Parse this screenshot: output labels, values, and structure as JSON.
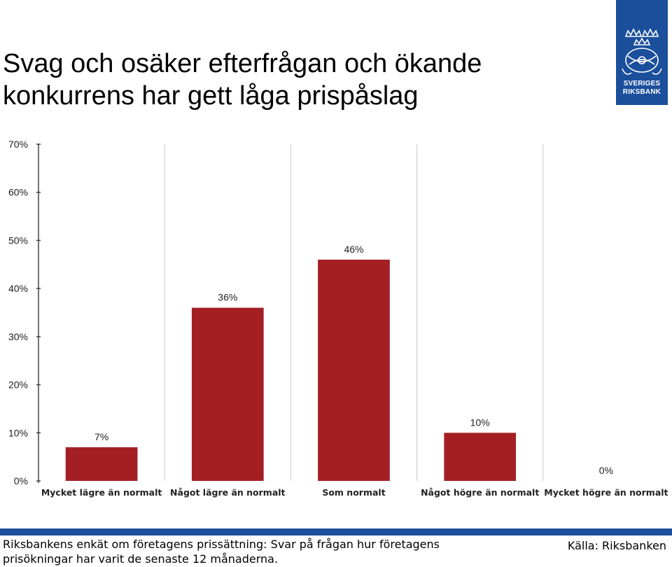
{
  "header": {
    "title_line1": "Svag och osäker efterfrågan och ökande",
    "title_line2": "konkurrens har gett låga prispåslag"
  },
  "logo": {
    "text_line1": "SVERIGES",
    "text_line2": "RIKSBANK",
    "color": "#1b4f9c"
  },
  "chart_data": {
    "type": "bar",
    "categories": [
      "Mycket lägre än normalt",
      "Något lägre än normalt",
      "Som normalt",
      "Något högre än normalt",
      "Mycket högre än normalt"
    ],
    "values": [
      7,
      36,
      46,
      10,
      0
    ],
    "data_labels": [
      "7%",
      "36%",
      "46%",
      "10%",
      "0%"
    ],
    "yticks": [
      "0%",
      "10%",
      "20%",
      "30%",
      "40%",
      "50%",
      "60%",
      "70%"
    ],
    "ylim": [
      0,
      70
    ],
    "grid": "vertical category separators",
    "bar_color": "#a31f24"
  },
  "footer": {
    "note_line1": "Riksbankens enkät om företagens prissättning: Svar på frågan hur företagens",
    "note_line2": "prisökningar har varit de senaste 12 månaderna.",
    "source": "Källa: Riksbanken",
    "bar_color": "#1b4f9c"
  }
}
